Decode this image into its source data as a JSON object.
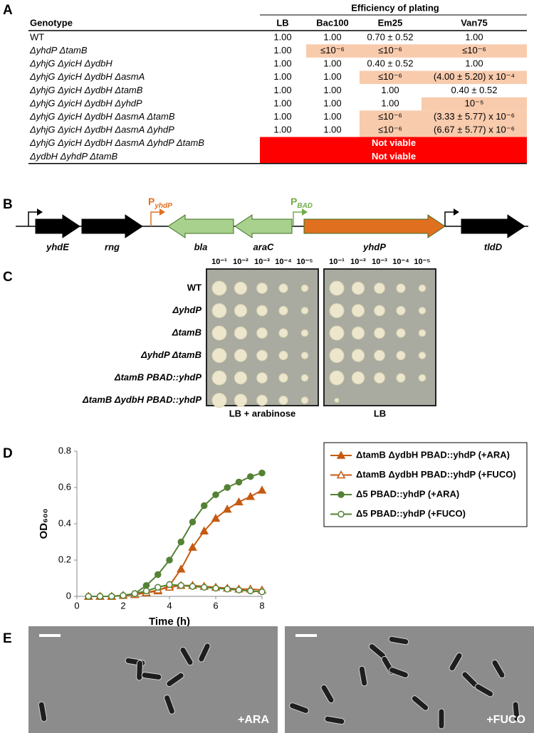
{
  "panel_labels": [
    "A",
    "B",
    "C",
    "D",
    "E"
  ],
  "table": {
    "group_header": "Efficiency of plating",
    "columns": [
      "Genotype",
      "LB",
      "Bac100",
      "Em25",
      "Van75"
    ],
    "rows": [
      {
        "genotype": "WT",
        "cells": [
          "1.00",
          "1.00",
          "0.70 ± 0.52",
          "1.00"
        ],
        "shaded": [
          false,
          false,
          false,
          false
        ]
      },
      {
        "genotype": "ΔyhdP ΔtamB",
        "cells": [
          "1.00",
          "≤10⁻⁶",
          "≤10⁻⁶",
          "≤10⁻⁶"
        ],
        "shaded": [
          false,
          true,
          true,
          true
        ]
      },
      {
        "genotype": "ΔyhjG ΔyicH ΔydbH",
        "cells": [
          "1.00",
          "1.00",
          "0.40 ± 0.52",
          "1.00"
        ],
        "shaded": [
          false,
          false,
          false,
          false
        ]
      },
      {
        "genotype": "ΔyhjG ΔyicH ΔydbH ΔasmA",
        "cells": [
          "1.00",
          "1.00",
          "≤10⁻⁶",
          "(4.00 ± 5.20) x 10⁻⁴"
        ],
        "shaded": [
          false,
          false,
          true,
          true
        ]
      },
      {
        "genotype": "ΔyhjG ΔyicH ΔydbH ΔtamB",
        "cells": [
          "1.00",
          "1.00",
          "1.00",
          "0.40 ± 0.52"
        ],
        "shaded": [
          false,
          false,
          false,
          false
        ]
      },
      {
        "genotype": "ΔyhjG ΔyicH ΔydbH ΔyhdP",
        "cells": [
          "1.00",
          "1.00",
          "1.00",
          "10⁻⁵"
        ],
        "shaded": [
          false,
          false,
          false,
          true
        ]
      },
      {
        "genotype": "ΔyhjG ΔyicH ΔydbH ΔasmA ΔtamB",
        "cells": [
          "1.00",
          "1.00",
          "≤10⁻⁶",
          "(3.33 ± 5.77) x 10⁻⁶"
        ],
        "shaded": [
          false,
          false,
          true,
          true
        ]
      },
      {
        "genotype": "ΔyhjG ΔyicH ΔydbH ΔasmA ΔyhdP",
        "cells": [
          "1.00",
          "1.00",
          "≤10⁻⁶",
          "(6.67 ± 5.77) x 10⁻⁶"
        ],
        "shaded": [
          false,
          false,
          true,
          true
        ]
      },
      {
        "genotype": "ΔyhjG ΔyicH ΔydbH ΔasmA ΔyhdP ΔtamB",
        "merged": "Not viable"
      },
      {
        "genotype": "ΔydbH ΔyhdP ΔtamB",
        "merged": "Not viable"
      }
    ]
  },
  "gene_map": {
    "genes": [
      "yhdE",
      "rng",
      "bla",
      "araC",
      "yhdP",
      "tldD"
    ],
    "promoters": [
      {
        "main": "P",
        "sub": "yhdP"
      },
      {
        "main": "P",
        "sub": "BAD"
      }
    ]
  },
  "plates": {
    "dilutions": [
      "10⁻¹",
      "10⁻²",
      "10⁻³",
      "10⁻⁴",
      "10⁻⁵"
    ],
    "strains": [
      "WT",
      "ΔyhdP",
      "ΔtamB",
      "ΔyhdP ΔtamB",
      "ΔtamB PBAD::yhdP",
      "ΔtamB ΔydbH PBAD::yhdP"
    ],
    "conditions": [
      "LB + arabinose",
      "LB"
    ]
  },
  "chart_data": {
    "type": "line",
    "x_label": "Time (h)",
    "y_label": "OD₆₀₀",
    "x": [
      0.5,
      1,
      1.5,
      2,
      2.5,
      3,
      3.5,
      4,
      4.5,
      5,
      5.5,
      6,
      6.5,
      7,
      7.5,
      8
    ],
    "xlim": [
      0,
      8
    ],
    "xticks": [
      0,
      2,
      4,
      6,
      8
    ],
    "ylim": [
      0,
      0.8
    ],
    "yticks": [
      0,
      0.2,
      0.4,
      0.6,
      0.8
    ],
    "series": [
      {
        "name": "ΔtamB ΔydbH PBAD::yhdP (+ARA)",
        "color": "#c55a11",
        "marker": "triangle",
        "filled": true,
        "values": [
          0,
          0,
          0,
          0.005,
          0.01,
          0.02,
          0.03,
          0.06,
          0.15,
          0.27,
          0.36,
          0.43,
          0.48,
          0.52,
          0.55,
          0.585
        ]
      },
      {
        "name": "ΔtamB ΔydbH PBAD::yhdP (+FUCO)",
        "color": "#c55a11",
        "marker": "triangle",
        "filled": false,
        "values": [
          0,
          0,
          0,
          0.005,
          0.01,
          0.02,
          0.035,
          0.05,
          0.06,
          0.06,
          0.055,
          0.05,
          0.045,
          0.04,
          0.04,
          0.035
        ]
      },
      {
        "name": "Δ5 PBAD::yhdP (+ARA)",
        "color": "#548235",
        "marker": "circle",
        "filled": true,
        "values": [
          0,
          0,
          0,
          0.005,
          0.015,
          0.06,
          0.12,
          0.2,
          0.3,
          0.41,
          0.5,
          0.56,
          0.6,
          0.63,
          0.66,
          0.68
        ]
      },
      {
        "name": "Δ5 PBAD::yhdP (+FUCO)",
        "color": "#548235",
        "marker": "circle",
        "filled": false,
        "values": [
          0,
          0,
          0,
          0.005,
          0.015,
          0.03,
          0.05,
          0.065,
          0.06,
          0.055,
          0.05,
          0.045,
          0.04,
          0.035,
          0.03,
          0.025
        ]
      }
    ]
  },
  "micrographs": {
    "labels": [
      "+ARA",
      "+FUCO"
    ]
  }
}
